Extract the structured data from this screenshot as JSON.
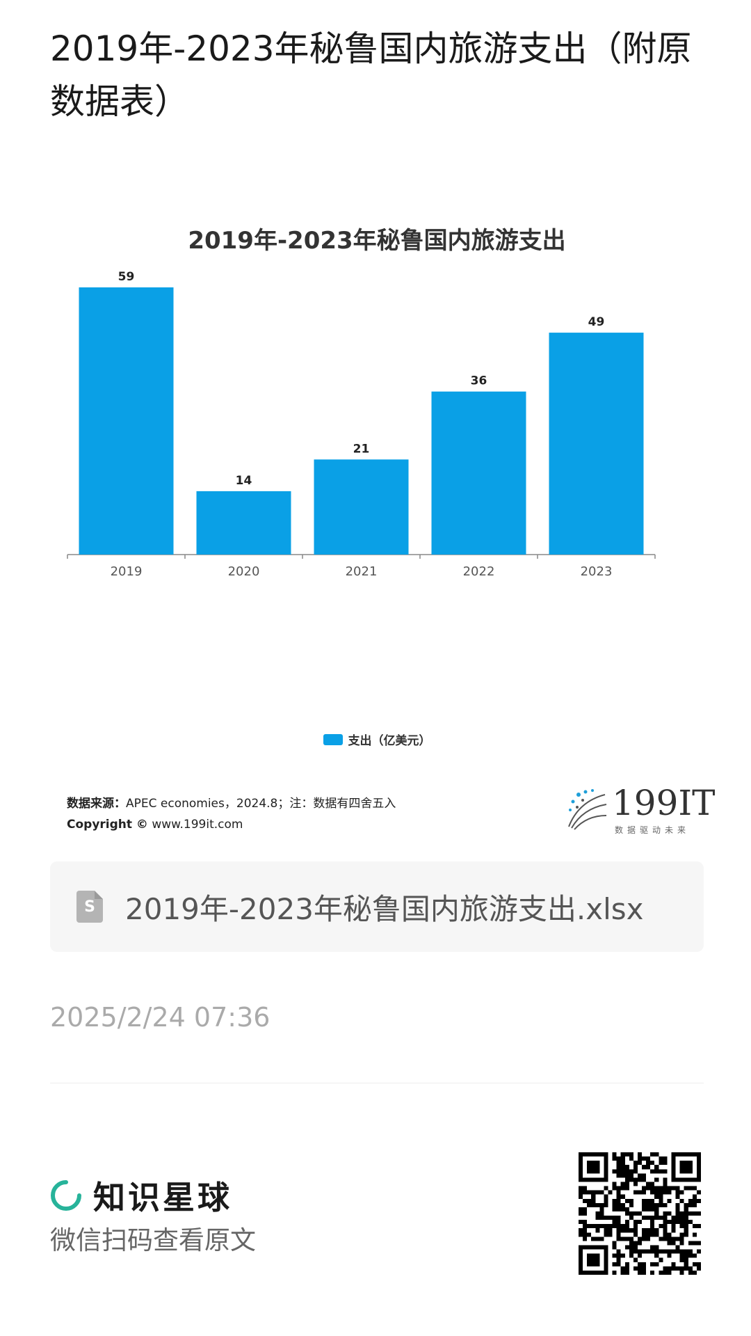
{
  "page": {
    "title": "2019年-2023年秘鲁国内旅游支出（附原数据表）",
    "file_name": "2019年-2023年秘鲁国内旅游支出.xlsx",
    "file_icon_letter": "S",
    "timestamp": "2025/2/24 07:36"
  },
  "chart_data": {
    "type": "bar",
    "title": "2019年-2023年秘鲁国内旅游支出",
    "categories": [
      "2019",
      "2020",
      "2021",
      "2022",
      "2023"
    ],
    "series": [
      {
        "name": "支出（亿美元）",
        "values": [
          59,
          14,
          21,
          36,
          49
        ]
      }
    ],
    "ylim": [
      0,
      59
    ],
    "grid": false,
    "legend": "bottom-center",
    "bar_color": "#0aa0e6"
  },
  "source": {
    "label": "数据来源：",
    "text": "APEC economies，2024.8；注：数据有四舍五入",
    "copyright_label": "Copyright ©",
    "copyright_text": "www.199it.com"
  },
  "logo": {
    "text": "199IT",
    "tagline": "数据驱动未来"
  },
  "footer": {
    "brand": "知识星球",
    "scan_text": "微信扫码查看原文"
  },
  "colors": {
    "accent_green": "#27b39a"
  }
}
